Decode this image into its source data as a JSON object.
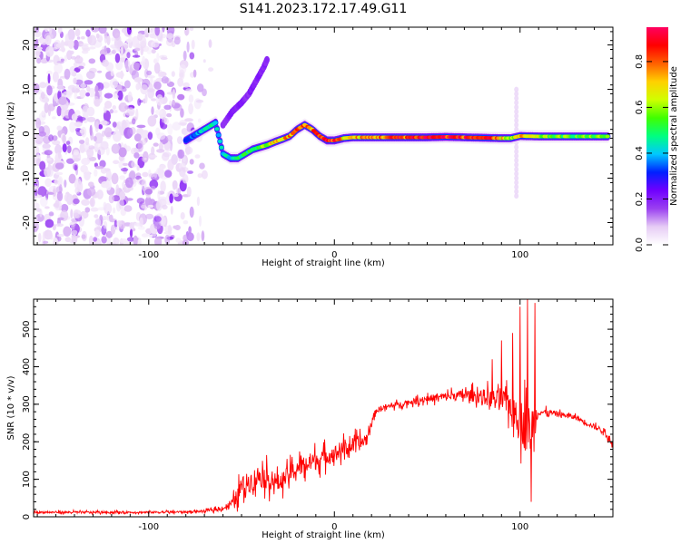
{
  "figure_title": "S141.2023.172.17.49.G11",
  "chart_data": [
    {
      "type": "heatmap",
      "title": "",
      "xlabel": "Height of straight line (km)",
      "ylabel": "Frequency (Hz)",
      "xlim": [
        -162,
        150
      ],
      "ylim": [
        -25,
        24
      ],
      "x_ticks": [
        -100,
        0,
        100
      ],
      "y_ticks": [
        -20,
        -10,
        0,
        10,
        20
      ],
      "grid": false,
      "colorbar": {
        "label": "Normalized spectral amplitude",
        "range": [
          0.0,
          0.95
        ],
        "ticks": [
          0.0,
          0.2,
          0.4,
          0.6,
          0.8
        ],
        "colormap": [
          "#ffffff",
          "#e6ccf5",
          "#9a40f0",
          "#7000ff",
          "#0020ff",
          "#00c8ff",
          "#00ff80",
          "#40ff00",
          "#d0ff00",
          "#ffd000",
          "#ff6000",
          "#ff0000",
          "#ff0060"
        ]
      },
      "noise_region_x": [
        -162,
        -65
      ],
      "ridge": {
        "x": [
          -80,
          -76,
          -72,
          -68,
          -64,
          -60,
          -56,
          -52,
          -48,
          -44,
          -40,
          -36,
          -32,
          -28,
          -24,
          -20,
          -16,
          -12,
          -8,
          -4,
          0,
          5,
          10,
          20,
          30,
          40,
          50,
          60,
          70,
          80,
          90,
          95,
          100,
          110,
          120,
          130,
          140,
          148
        ],
        "freq": [
          -1.5,
          -0.5,
          0.5,
          1.5,
          2.5,
          -4.5,
          -5.5,
          -5.5,
          -4.5,
          -3.5,
          -3.0,
          -2.5,
          -1.8,
          -1.2,
          -0.5,
          1.0,
          2.0,
          1.0,
          -0.5,
          -1.5,
          -1.5,
          -1.0,
          -0.8,
          -0.8,
          -0.8,
          -0.8,
          -0.8,
          -0.7,
          -0.8,
          -0.9,
          -1.0,
          -1.0,
          -0.5,
          -0.6,
          -0.6,
          -0.6,
          -0.6,
          -0.6
        ],
        "amplitude": [
          0.3,
          0.35,
          0.4,
          0.45,
          0.4,
          0.45,
          0.4,
          0.45,
          0.5,
          0.5,
          0.55,
          0.6,
          0.7,
          0.7,
          0.75,
          0.8,
          0.75,
          0.8,
          0.85,
          0.9,
          0.85,
          0.7,
          0.7,
          0.75,
          0.8,
          0.85,
          0.9,
          0.88,
          0.85,
          0.85,
          0.7,
          0.6,
          0.7,
          0.6,
          0.55,
          0.55,
          0.55,
          0.55
        ]
      },
      "secondary_ridge": {
        "x": [
          -60,
          -55,
          -50,
          -46,
          -42,
          -38,
          -36
        ],
        "freq": [
          2,
          5,
          7,
          9,
          12,
          15,
          17
        ]
      },
      "vertical_feature": {
        "x": 100,
        "freq_range": [
          -14,
          10
        ]
      }
    },
    {
      "type": "line",
      "title": "",
      "xlabel": "Height of straight line (km)",
      "ylabel": "SNR (10 * v/v)",
      "xlim": [
        -162,
        150
      ],
      "ylim": [
        0,
        580
      ],
      "x_ticks": [
        -100,
        0,
        100
      ],
      "y_ticks": [
        0,
        100,
        200,
        300,
        400,
        500
      ],
      "grid": false,
      "color": "#ff0000",
      "series_envelope": {
        "x": [
          -162,
          -140,
          -120,
          -100,
          -80,
          -70,
          -60,
          -54,
          -50,
          -45,
          -40,
          -35,
          -30,
          -25,
          -20,
          -15,
          -10,
          -5,
          0,
          5,
          10,
          15,
          18,
          20,
          22,
          25,
          30,
          40,
          50,
          60,
          70,
          80,
          90,
          95,
          100,
          103,
          105,
          108,
          110,
          120,
          130,
          140,
          145,
          150
        ],
        "base": [
          12,
          12,
          12,
          12,
          13,
          15,
          22,
          40,
          80,
          95,
          110,
          100,
          90,
          110,
          130,
          140,
          150,
          160,
          170,
          180,
          190,
          200,
          210,
          250,
          280,
          290,
          295,
          305,
          315,
          320,
          325,
          320,
          310,
          300,
          260,
          240,
          230,
          260,
          280,
          275,
          265,
          240,
          230,
          190
        ],
        "spread": [
          6,
          6,
          6,
          6,
          6,
          7,
          10,
          35,
          60,
          60,
          70,
          60,
          50,
          50,
          55,
          60,
          55,
          50,
          45,
          45,
          45,
          45,
          40,
          25,
          15,
          15,
          15,
          15,
          20,
          25,
          30,
          45,
          60,
          80,
          120,
          150,
          150,
          100,
          20,
          15,
          15,
          15,
          15,
          15
        ]
      },
      "peaks": [
        {
          "x": 85,
          "y": 420
        },
        {
          "x": 90,
          "y": 470
        },
        {
          "x": 96,
          "y": 490
        },
        {
          "x": 100,
          "y": 560
        },
        {
          "x": 104,
          "y": 580
        },
        {
          "x": 106,
          "y": 560
        },
        {
          "x": 108,
          "y": 570
        },
        {
          "x": 106,
          "y": 40
        }
      ]
    }
  ]
}
